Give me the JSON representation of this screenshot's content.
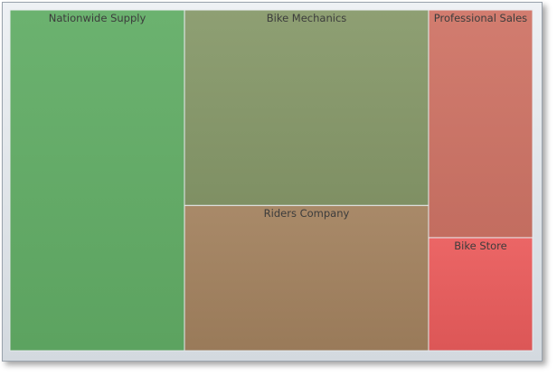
{
  "chart_data": {
    "type": "treemap",
    "categories": [
      "Nationwide Supply",
      "Bike Mechanics",
      "Riders Company",
      "Professional Sales",
      "Bike Store"
    ],
    "values": [
      334,
      268,
      199,
      133,
      66
    ],
    "colors": [
      "#62ad66",
      "#87996a",
      "#a3825f",
      "#cf7466",
      "#ea5c5c"
    ]
  }
}
